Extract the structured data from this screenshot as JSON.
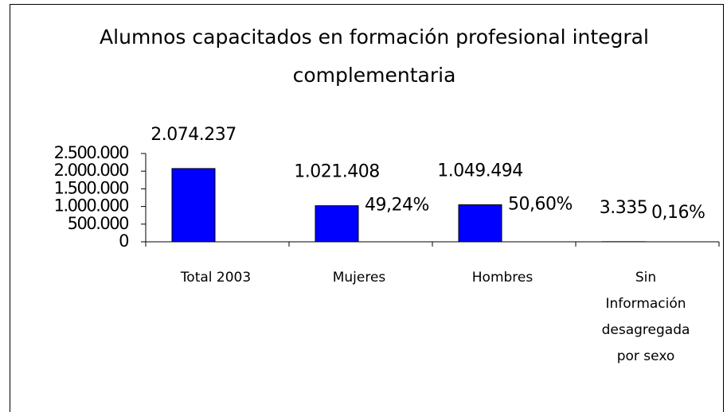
{
  "chart_data": {
    "type": "bar",
    "title": "Alumnos capacitados en formación profesional integral complementaria",
    "categories": [
      "Total 2003",
      "Mujeres",
      "Hombres",
      "Sin Información desagregada por sexo"
    ],
    "values": [
      2074237,
      1021408,
      1049494,
      3335
    ],
    "value_labels": [
      "2.074.237",
      "1.021.408",
      "1.049.494",
      "3.335"
    ],
    "share_labels": [
      null,
      "49,24%",
      "50,60%",
      "0,16%"
    ],
    "color": "#0000ff",
    "ylim": [
      0,
      2500000
    ],
    "yticks": [
      0,
      {
        "value": 500000,
        "label": "500.000"
      },
      {
        "value": 1000000,
        "label": "1.000.000"
      },
      {
        "value": 1500000,
        "label": "1.500.000"
      },
      {
        "value": 2000000,
        "label": "2.000.000"
      },
      {
        "value": 2500000,
        "label": "2.500.000"
      }
    ],
    "grid": false
  }
}
